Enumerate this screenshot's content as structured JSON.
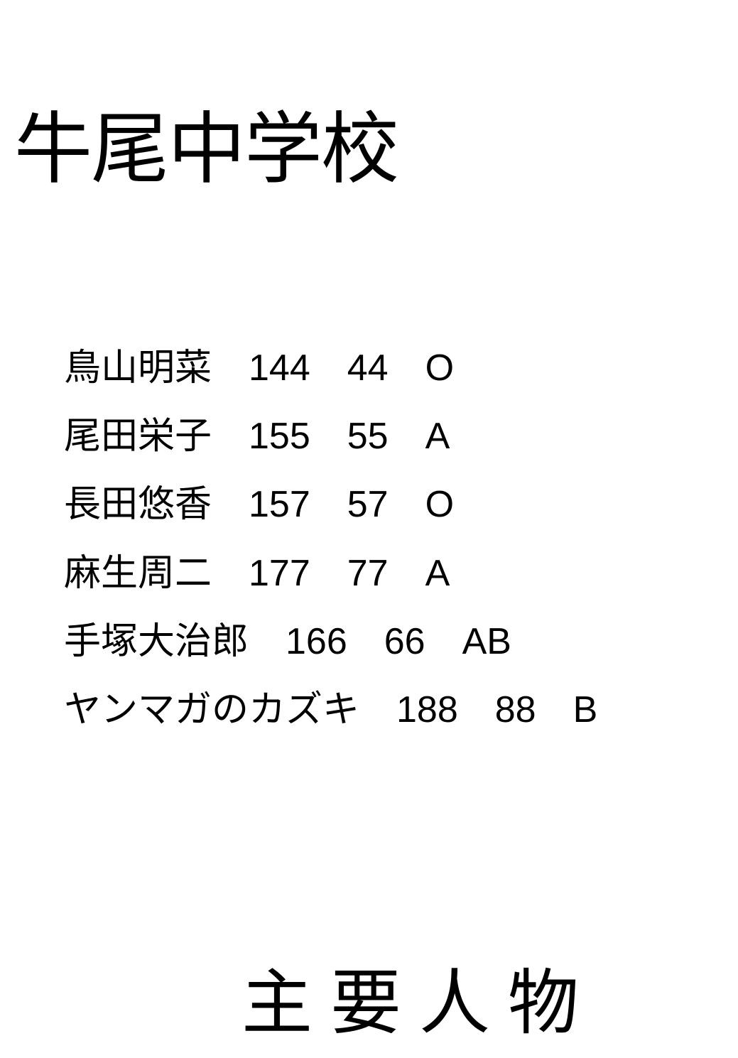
{
  "title": "牛尾中学校",
  "subtitle": "主要人物",
  "students": [
    {
      "line": "鳥山明菜　144　44　O"
    },
    {
      "line": "尾田栄子　155　55　A"
    },
    {
      "line": "長田悠香　157　57　O"
    },
    {
      "line": "麻生周二　177　77　A"
    },
    {
      "line": "手塚大治郎　166　66　AB"
    },
    {
      "line": "ヤンマガのカズキ　188　88　B"
    }
  ],
  "styling": {
    "background_color": "#ffffff",
    "text_color": "#000000",
    "title_fontsize": 110,
    "list_fontsize": 52,
    "subtitle_fontsize": 100,
    "list_line_height": 1.85,
    "font_family": "Hiragino Kaku Gothic ProN, Yu Gothic, Meiryo, sans-serif"
  }
}
